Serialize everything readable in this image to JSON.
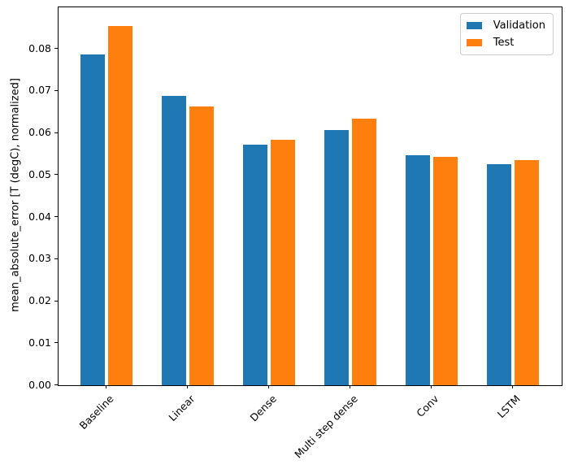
{
  "chart_data": {
    "type": "bar",
    "title": "",
    "xlabel": "",
    "ylabel": "mean_absolute_error [T (degC), normalized]",
    "categories": [
      "Baseline",
      "Linear",
      "Dense",
      "Multi step dense",
      "Conv",
      "LSTM"
    ],
    "series": [
      {
        "name": "Validation",
        "color": "#1f77b4",
        "values": [
          0.0786,
          0.0688,
          0.0573,
          0.0608,
          0.0547,
          0.0525
        ]
      },
      {
        "name": "Test",
        "color": "#ff7f0e",
        "values": [
          0.0854,
          0.0664,
          0.0584,
          0.0635,
          0.0544,
          0.0535
        ]
      }
    ],
    "ylim": [
      0,
      0.0899
    ],
    "yticks": [
      {
        "value": 0.0,
        "label": "0.00"
      },
      {
        "value": 0.01,
        "label": "0.01"
      },
      {
        "value": 0.02,
        "label": "0.02"
      },
      {
        "value": 0.03,
        "label": "0.03"
      },
      {
        "value": 0.04,
        "label": "0.04"
      },
      {
        "value": 0.05,
        "label": "0.05"
      },
      {
        "value": 0.06,
        "label": "0.06"
      },
      {
        "value": 0.07,
        "label": "0.07"
      },
      {
        "value": 0.08,
        "label": "0.08"
      }
    ],
    "xtick_rotation_deg": 45,
    "grid": false,
    "legend": {
      "position": "upper-right",
      "entries": [
        "Validation",
        "Test"
      ]
    }
  }
}
